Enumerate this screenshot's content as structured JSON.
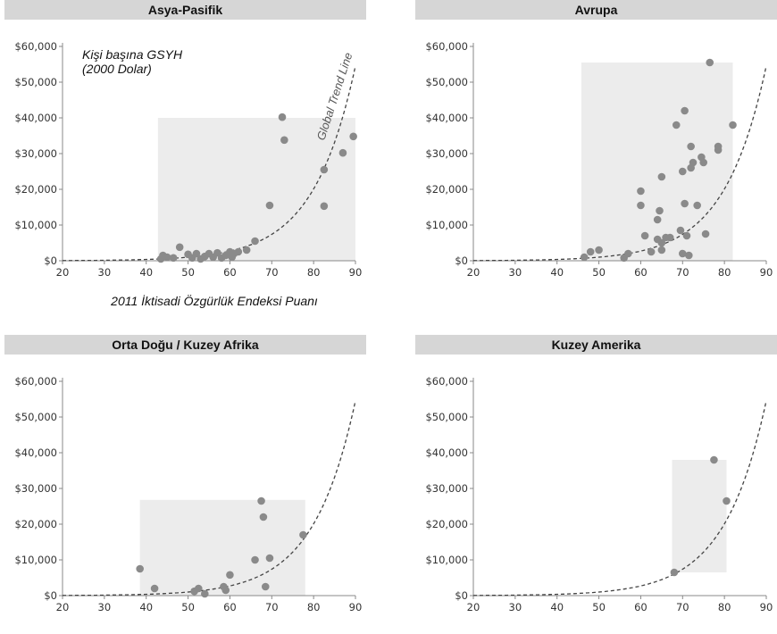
{
  "trend_label": "Global Trend Line",
  "ylabel_note": [
    "Kişi başına GSYH",
    "(2000 Dolar)"
  ],
  "xlabel_note": "2011 İktisadi Özgürlük Endeksi Puanı",
  "chart_data": [
    {
      "type": "scatter",
      "title": "Asya-Pasifik",
      "xlim": [
        20,
        90
      ],
      "ylim": [
        0,
        60000
      ],
      "x_ticks": [
        "20",
        "30",
        "40",
        "50",
        "60",
        "70",
        "80",
        "90"
      ],
      "y_ticks": [
        "$0",
        "$10,000",
        "$20,000",
        "$30,000",
        "$40,000",
        "$50,000",
        "$60,000"
      ],
      "range_box": {
        "x": [
          42.8,
          90
        ],
        "y": [
          0,
          40000
        ]
      },
      "points": [
        {
          "x": 43.5,
          "y": 500
        },
        {
          "x": 44,
          "y": 1500
        },
        {
          "x": 45,
          "y": 1000
        },
        {
          "x": 46.5,
          "y": 800
        },
        {
          "x": 48,
          "y": 3800
        },
        {
          "x": 50,
          "y": 1800
        },
        {
          "x": 51,
          "y": 800
        },
        {
          "x": 52,
          "y": 2000
        },
        {
          "x": 53,
          "y": 500
        },
        {
          "x": 54,
          "y": 1200
        },
        {
          "x": 55,
          "y": 2000
        },
        {
          "x": 56,
          "y": 1000
        },
        {
          "x": 57,
          "y": 2200
        },
        {
          "x": 58,
          "y": 800
        },
        {
          "x": 59,
          "y": 1500
        },
        {
          "x": 60,
          "y": 2500
        },
        {
          "x": 60.5,
          "y": 1000
        },
        {
          "x": 61,
          "y": 2000
        },
        {
          "x": 62,
          "y": 2500
        },
        {
          "x": 64,
          "y": 3000
        },
        {
          "x": 66,
          "y": 5500
        },
        {
          "x": 69.5,
          "y": 15500
        },
        {
          "x": 72.5,
          "y": 40200
        },
        {
          "x": 73,
          "y": 33800
        },
        {
          "x": 82.5,
          "y": 25500
        },
        {
          "x": 82.5,
          "y": 15300
        },
        {
          "x": 87,
          "y": 30200
        },
        {
          "x": 89.5,
          "y": 34800
        }
      ]
    },
    {
      "type": "scatter",
      "title": "Avrupa",
      "xlim": [
        20,
        90
      ],
      "ylim": [
        0,
        60000
      ],
      "x_ticks": [
        "20",
        "30",
        "40",
        "50",
        "60",
        "70",
        "80",
        "90"
      ],
      "y_ticks": [
        "$0",
        "$10,000",
        "$20,000",
        "$30,000",
        "$40,000",
        "$50,000",
        "$60,000"
      ],
      "range_box": {
        "x": [
          45.8,
          82
        ],
        "y": [
          0,
          55500
        ]
      },
      "points": [
        {
          "x": 46.5,
          "y": 1000
        },
        {
          "x": 48,
          "y": 2500
        },
        {
          "x": 50,
          "y": 3000
        },
        {
          "x": 56,
          "y": 800
        },
        {
          "x": 57,
          "y": 2000
        },
        {
          "x": 60,
          "y": 19500
        },
        {
          "x": 60,
          "y": 15500
        },
        {
          "x": 61,
          "y": 7000
        },
        {
          "x": 62.5,
          "y": 2500
        },
        {
          "x": 64,
          "y": 11500
        },
        {
          "x": 64,
          "y": 6000
        },
        {
          "x": 64.5,
          "y": 14000
        },
        {
          "x": 65,
          "y": 5000
        },
        {
          "x": 65,
          "y": 23500
        },
        {
          "x": 65,
          "y": 3000
        },
        {
          "x": 66,
          "y": 6500
        },
        {
          "x": 67,
          "y": 6500
        },
        {
          "x": 68.5,
          "y": 38000
        },
        {
          "x": 69.5,
          "y": 8500
        },
        {
          "x": 70,
          "y": 2000
        },
        {
          "x": 70,
          "y": 25000
        },
        {
          "x": 70.5,
          "y": 42000
        },
        {
          "x": 70.5,
          "y": 16000
        },
        {
          "x": 71,
          "y": 7000
        },
        {
          "x": 71.5,
          "y": 1500
        },
        {
          "x": 72,
          "y": 26000
        },
        {
          "x": 72,
          "y": 32000
        },
        {
          "x": 72.5,
          "y": 27500
        },
        {
          "x": 73.5,
          "y": 15500
        },
        {
          "x": 74.5,
          "y": 29000
        },
        {
          "x": 75,
          "y": 27500
        },
        {
          "x": 75.5,
          "y": 7500
        },
        {
          "x": 76.5,
          "y": 55500
        },
        {
          "x": 78.5,
          "y": 32000
        },
        {
          "x": 78.5,
          "y": 31000
        },
        {
          "x": 82,
          "y": 38000
        }
      ]
    },
    {
      "type": "scatter",
      "title": "Orta Doğu / Kuzey Afrika",
      "xlim": [
        20,
        90
      ],
      "ylim": [
        0,
        60000
      ],
      "x_ticks": [
        "20",
        "30",
        "40",
        "50",
        "60",
        "70",
        "80",
        "90"
      ],
      "y_ticks": [
        "$0",
        "$10,000",
        "$20,000",
        "$30,000",
        "$40,000",
        "$50,000",
        "$60,000"
      ],
      "range_box": {
        "x": [
          38.5,
          78
        ],
        "y": [
          0,
          26800
        ]
      },
      "points": [
        {
          "x": 38.5,
          "y": 7500
        },
        {
          "x": 42,
          "y": 2000
        },
        {
          "x": 51.5,
          "y": 1200
        },
        {
          "x": 52.5,
          "y": 2000
        },
        {
          "x": 54,
          "y": 500
        },
        {
          "x": 58.5,
          "y": 2500
        },
        {
          "x": 59,
          "y": 1500
        },
        {
          "x": 60,
          "y": 5800
        },
        {
          "x": 66,
          "y": 10000
        },
        {
          "x": 67.5,
          "y": 26500
        },
        {
          "x": 68,
          "y": 22000
        },
        {
          "x": 68.5,
          "y": 2500
        },
        {
          "x": 69.5,
          "y": 10500
        },
        {
          "x": 77.5,
          "y": 17000
        }
      ]
    },
    {
      "type": "scatter",
      "title": "Kuzey Amerika",
      "xlim": [
        20,
        90
      ],
      "ylim": [
        0,
        60000
      ],
      "x_ticks": [
        "20",
        "30",
        "40",
        "50",
        "60",
        "70",
        "80",
        "90"
      ],
      "y_ticks": [
        "$0",
        "$10,000",
        "$20,000",
        "$30,000",
        "$40,000",
        "$50,000",
        "$60,000"
      ],
      "range_box": {
        "x": [
          67.5,
          80.5
        ],
        "y": [
          6500,
          38000
        ]
      },
      "points": [
        {
          "x": 68,
          "y": 6500
        },
        {
          "x": 77.5,
          "y": 38000
        },
        {
          "x": 80.5,
          "y": 26500
        }
      ]
    }
  ]
}
